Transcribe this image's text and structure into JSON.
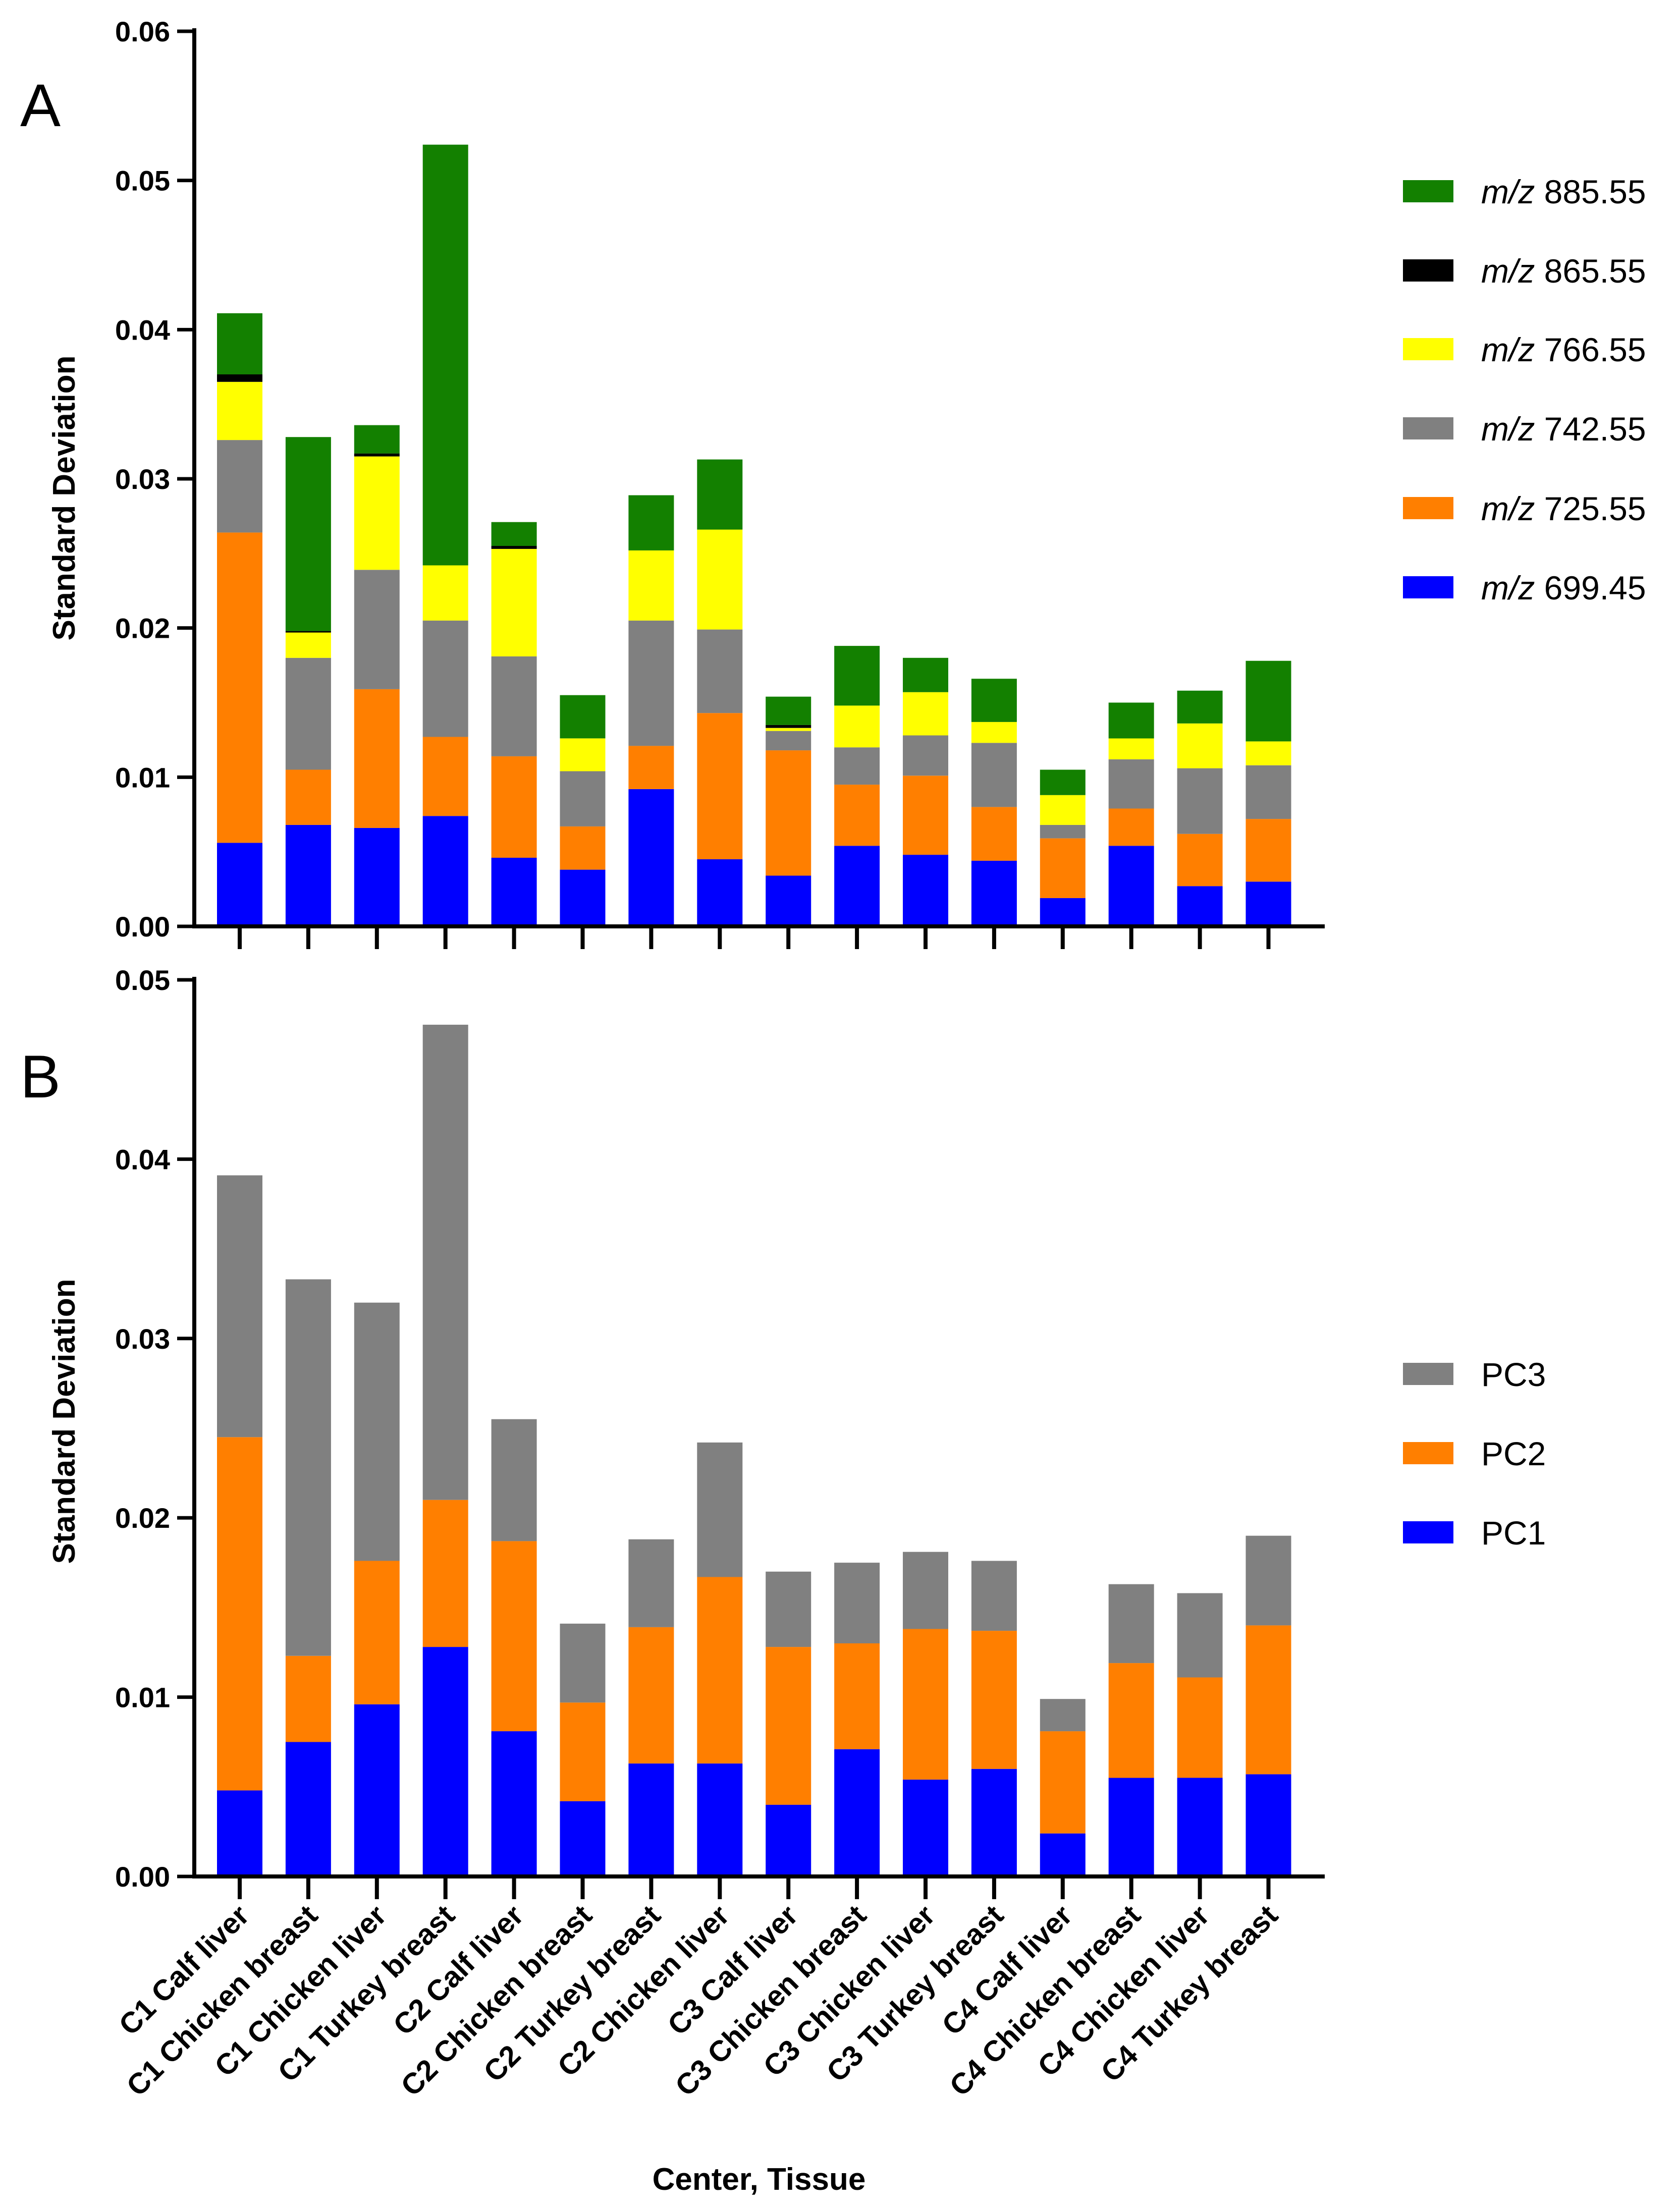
{
  "xlabel": "Center, Tissue",
  "categories": [
    "C1 Calf liver",
    "C1 Chicken breast",
    "C1 Chicken liver",
    "C1 Turkey breast",
    "C2 Calf liver",
    "C2 Chicken breast",
    "C2 Turkey breast",
    "C2 Chicken liver",
    "C3 Calf liver",
    "C3 Chicken breast",
    "C3 Chicken liver",
    "C3 Turkey breast",
    "C4 Calf liver",
    "C4 Chicken breast",
    "C4 Chicken liver",
    "C4 Turkey breast"
  ],
  "colors": {
    "blue": "#0000ff",
    "orange": "#ff7f00",
    "gray": "#808080",
    "yellow": "#ffff00",
    "black": "#000000",
    "green": "#138000"
  },
  "chart_data": [
    {
      "type": "bar",
      "stacked": true,
      "panel_label": "A",
      "ylabel": "Standard Deviation",
      "ylim": [
        0,
        0.06
      ],
      "yticks": [
        "0.00",
        "0.01",
        "0.02",
        "0.03",
        "0.04",
        "0.05",
        "0.06"
      ],
      "legend_position": "right",
      "series": [
        {
          "prefix": "m/z",
          "name": " 699.45",
          "color": "#0000ff",
          "values": [
            0.0056,
            0.0068,
            0.0066,
            0.0074,
            0.0046,
            0.0038,
            0.0092,
            0.0045,
            0.0034,
            0.0054,
            0.0048,
            0.0044,
            0.0019,
            0.0054,
            0.0027,
            0.003
          ]
        },
        {
          "prefix": "m/z",
          "name": " 725.55",
          "color": "#ff7f00",
          "values": [
            0.0208,
            0.0037,
            0.0093,
            0.0053,
            0.0068,
            0.0029,
            0.0029,
            0.0098,
            0.0084,
            0.0041,
            0.0053,
            0.0036,
            0.004,
            0.0025,
            0.0035,
            0.0042
          ]
        },
        {
          "prefix": "m/z",
          "name": " 742.55",
          "color": "#808080",
          "values": [
            0.0062,
            0.0075,
            0.008,
            0.0078,
            0.0067,
            0.0037,
            0.0084,
            0.0056,
            0.0013,
            0.0025,
            0.0027,
            0.0043,
            0.0009,
            0.0033,
            0.0044,
            0.0036
          ]
        },
        {
          "prefix": "m/z",
          "name": " 766.55",
          "color": "#ffff00",
          "values": [
            0.0039,
            0.0017,
            0.0076,
            0.0037,
            0.0072,
            0.0022,
            0.0047,
            0.0067,
            0.0002,
            0.0028,
            0.0029,
            0.0014,
            0.002,
            0.0014,
            0.003,
            0.0016
          ]
        },
        {
          "prefix": "m/z",
          "name": " 865.55",
          "color": "#000000",
          "values": [
            0.0005,
            0.0001,
            0.0002,
            0.0,
            0.0002,
            0.0,
            0.0,
            0.0,
            0.0002,
            0.0,
            0.0,
            0.0,
            0.0,
            0.0,
            0.0,
            0.0
          ]
        },
        {
          "prefix": "m/z",
          "name": " 885.55",
          "color": "#138000",
          "values": [
            0.0041,
            0.013,
            0.0019,
            0.0282,
            0.0016,
            0.0029,
            0.0037,
            0.0047,
            0.0019,
            0.004,
            0.0023,
            0.0029,
            0.0017,
            0.0024,
            0.0022,
            0.0054
          ]
        }
      ]
    },
    {
      "type": "bar",
      "stacked": true,
      "panel_label": "B",
      "ylabel": "Standard Deviation",
      "ylim": [
        0,
        0.05
      ],
      "yticks": [
        "0.00",
        "0.01",
        "0.02",
        "0.03",
        "0.04",
        "0.05"
      ],
      "legend_position": "right",
      "series": [
        {
          "prefix": "",
          "name": "PC1",
          "color": "#0000ff",
          "values": [
            0.0048,
            0.0075,
            0.0096,
            0.0128,
            0.0081,
            0.0042,
            0.0063,
            0.0063,
            0.004,
            0.0071,
            0.0054,
            0.006,
            0.0024,
            0.0055,
            0.0055,
            0.0057
          ]
        },
        {
          "prefix": "",
          "name": "PC2",
          "color": "#ff7f00",
          "values": [
            0.0197,
            0.0048,
            0.008,
            0.0082,
            0.0106,
            0.0055,
            0.0076,
            0.0104,
            0.0088,
            0.0059,
            0.0084,
            0.0077,
            0.0057,
            0.0064,
            0.0056,
            0.0083
          ]
        },
        {
          "prefix": "",
          "name": "PC3",
          "color": "#808080",
          "values": [
            0.0146,
            0.021,
            0.0144,
            0.0265,
            0.0068,
            0.0044,
            0.0049,
            0.0075,
            0.0042,
            0.0045,
            0.0043,
            0.0039,
            0.0018,
            0.0044,
            0.0047,
            0.005
          ]
        }
      ]
    }
  ]
}
